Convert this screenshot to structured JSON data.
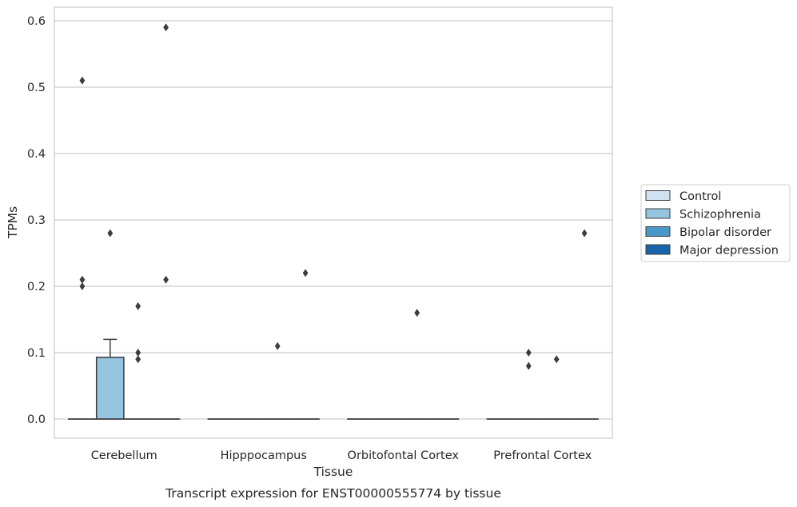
{
  "chart_data": {
    "type": "box",
    "caption": "Transcript expression for ENST00000555774 by tissue",
    "xlabel": "Tissue",
    "ylabel": "TPMs",
    "ylim": [
      -0.03,
      0.62
    ],
    "yticks": [
      0.0,
      0.1,
      0.2,
      0.3,
      0.4,
      0.5,
      0.6
    ],
    "ytick_labels": [
      "0.0",
      "0.1",
      "0.2",
      "0.3",
      "0.4",
      "0.5",
      "0.6"
    ],
    "grid": "horizontal",
    "legend_placement": "right",
    "categories": [
      "Cerebellum",
      "Hipppocampus",
      "Orbitofontal Cortex",
      "Prefrontal Cortex"
    ],
    "series": [
      {
        "name": "Control",
        "color": "#d0e1f2",
        "boxes": [
          {
            "q1": 0,
            "median": 0,
            "q3": 0,
            "whisker_low": 0,
            "whisker_high": 0,
            "outliers": [
              0.51,
              0.21,
              0.2
            ]
          },
          {
            "q1": 0,
            "median": 0,
            "q3": 0,
            "whisker_low": 0,
            "whisker_high": 0,
            "outliers": []
          },
          {
            "q1": 0,
            "median": 0,
            "q3": 0,
            "whisker_low": 0,
            "whisker_high": 0,
            "outliers": []
          },
          {
            "q1": 0,
            "median": 0,
            "q3": 0,
            "whisker_low": 0,
            "whisker_high": 0,
            "outliers": []
          }
        ]
      },
      {
        "name": "Schizophrenia",
        "color": "#94c4df",
        "boxes": [
          {
            "q1": 0,
            "median": 0,
            "q3": 0.093,
            "whisker_low": 0,
            "whisker_high": 0.12,
            "outliers": [
              0.28
            ]
          },
          {
            "q1": 0,
            "median": 0,
            "q3": 0,
            "whisker_low": 0,
            "whisker_high": 0,
            "outliers": []
          },
          {
            "q1": 0,
            "median": 0,
            "q3": 0,
            "whisker_low": 0,
            "whisker_high": 0,
            "outliers": []
          },
          {
            "q1": 0,
            "median": 0,
            "q3": 0,
            "whisker_low": 0,
            "whisker_high": 0,
            "outliers": [
              0.1,
              0.08
            ]
          }
        ]
      },
      {
        "name": "Bipolar disorder",
        "color": "#4a98c9",
        "boxes": [
          {
            "q1": 0,
            "median": 0,
            "q3": 0,
            "whisker_low": 0,
            "whisker_high": 0,
            "outliers": [
              0.17,
              0.1,
              0.09
            ]
          },
          {
            "q1": 0,
            "median": 0,
            "q3": 0,
            "whisker_low": 0,
            "whisker_high": 0,
            "outliers": [
              0.11
            ]
          },
          {
            "q1": 0,
            "median": 0,
            "q3": 0,
            "whisker_low": 0,
            "whisker_high": 0,
            "outliers": [
              0.16
            ]
          },
          {
            "q1": 0,
            "median": 0,
            "q3": 0,
            "whisker_low": 0,
            "whisker_high": 0,
            "outliers": [
              0.09
            ]
          }
        ]
      },
      {
        "name": "Major depression",
        "color": "#1764ab",
        "boxes": [
          {
            "q1": 0,
            "median": 0,
            "q3": 0,
            "whisker_low": 0,
            "whisker_high": 0,
            "outliers": [
              0.59,
              0.21
            ]
          },
          {
            "q1": 0,
            "median": 0,
            "q3": 0,
            "whisker_low": 0,
            "whisker_high": 0,
            "outliers": [
              0.22
            ]
          },
          {
            "q1": 0,
            "median": 0,
            "q3": 0,
            "whisker_low": 0,
            "whisker_high": 0,
            "outliers": []
          },
          {
            "q1": 0,
            "median": 0,
            "q3": 0,
            "whisker_low": 0,
            "whisker_high": 0,
            "outliers": [
              0.28
            ]
          }
        ]
      }
    ]
  }
}
